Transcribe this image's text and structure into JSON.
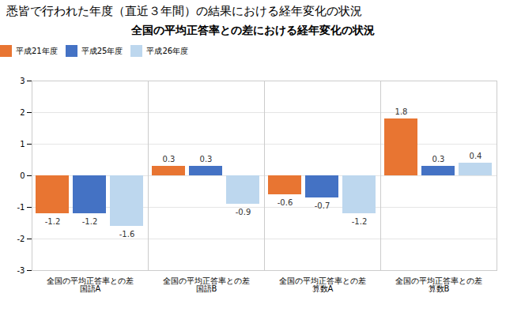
{
  "chart_data": {
    "type": "bar",
    "title": "悉皆で行われた年度（直近３年間）の結果における経年変化の状況",
    "subtitle": "全国の平均正答率との差における経年変化の状況",
    "categories": [
      "全国の平均正答率との差\n国語A",
      "全国の平均正答率との差\n国語B",
      "全国の平均正答率との差\n算数A",
      "全国の平均正答率との差\n算数B"
    ],
    "series": [
      {
        "name": "平成21年度",
        "color": "#E87532",
        "values": [
          -1.2,
          0.3,
          -0.6,
          1.8
        ]
      },
      {
        "name": "平成25年度",
        "color": "#4472C4",
        "values": [
          -1.2,
          0.3,
          -0.7,
          0.3
        ]
      },
      {
        "name": "平成26年度",
        "color": "#BDD7EE",
        "values": [
          -1.6,
          -0.9,
          -1.2,
          0.4
        ]
      }
    ],
    "ylim": [
      -3,
      3
    ],
    "yticks": [
      -3,
      -2,
      -1,
      0,
      1,
      2,
      3
    ],
    "grid": true,
    "legend": "upper left",
    "data_labels": true
  }
}
